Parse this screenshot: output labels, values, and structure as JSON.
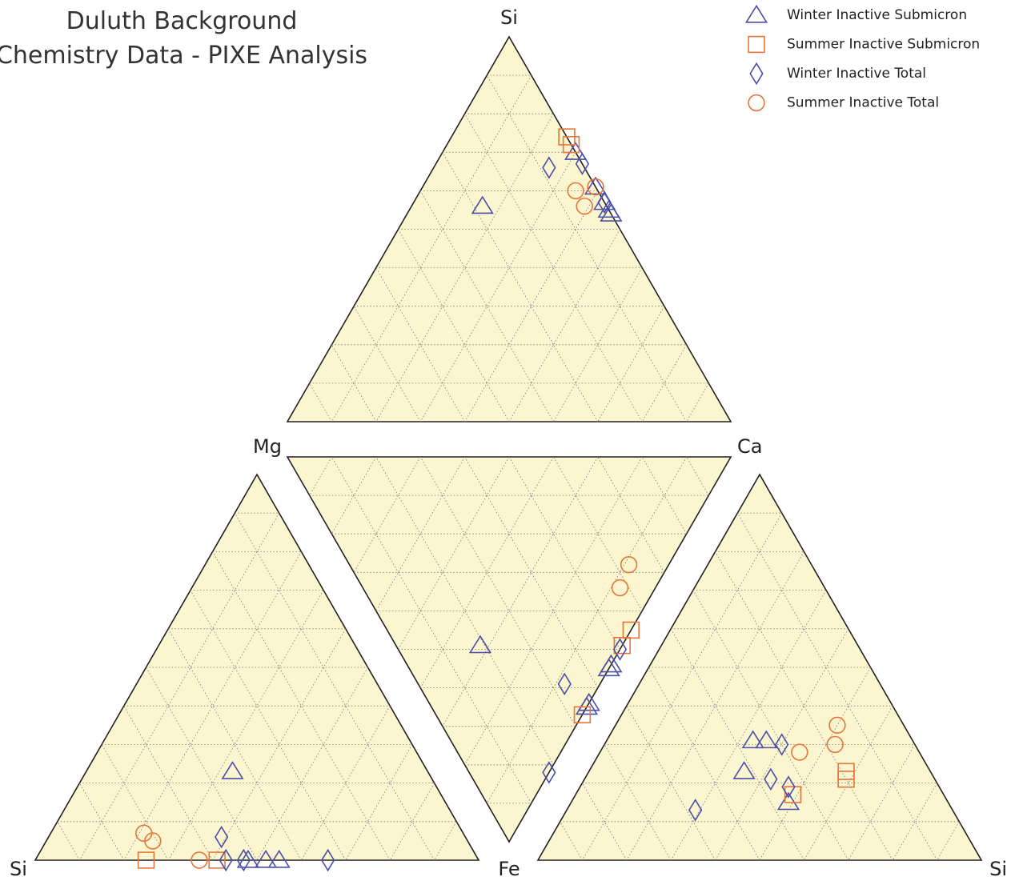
{
  "chart_data": {
    "type": "ternary",
    "title": [
      "Duluth Background",
      "Chemistry Data - PIXE Analysis"
    ],
    "labels": [
      "Si",
      "Mg",
      "Ca",
      "Si",
      "Fe",
      "Si"
    ],
    "grid_step": 10,
    "legend": "top-right",
    "series": [
      {
        "name": "Winter Inactive Submicron",
        "color": "#4b4fa8",
        "marker": "triangle",
        "values": [
          [
            [
              56,
              28,
              16
            ],
            [
              70,
              0,
              30
            ],
            [
              61,
              0,
              39
            ],
            [
              57,
              0,
              43
            ],
            [
              55,
              0,
              45
            ],
            [
              54,
              0,
              46
            ]
          ],
          [
            [
              32,
              19,
              49
            ],
            [
              0,
              45,
              55
            ],
            [
              0,
              46,
              54
            ],
            [
              0,
              36,
              64
            ],
            [
              0,
              35,
              65
            ]
          ],
          [
            [
              23,
              44,
              33
            ],
            [
              0,
              52,
              48
            ],
            [
              0,
              48,
              52
            ],
            [
              0,
              45,
              55
            ]
          ],
          [
            [
              31,
              36,
              33
            ],
            [
              31,
              33,
              36
            ],
            [
              23,
              42,
              35
            ],
            [
              15,
              36,
              49
            ]
          ]
        ]
      },
      {
        "name": "Summer Inactive Submicron",
        "color": "#e5763a",
        "marker": "square",
        "values": [
          [
            [
              74,
              0,
              26
            ],
            [
              72,
              0,
              28
            ]
          ],
          [
            [
              0,
              55,
              45
            ],
            [
              0,
              51,
              49
            ],
            [
              0,
              33,
              67
            ]
          ],
          [
            [
              0,
              75,
              25
            ],
            [
              0,
              59,
              41
            ]
          ],
          [
            [
              23,
              19,
              58
            ],
            [
              21,
              20,
              59
            ],
            [
              17,
              34,
              49
            ]
          ]
        ]
      },
      {
        "name": "Winter Inactive Total",
        "color": "#4b4fa8",
        "marker": "diamond",
        "values": [
          [
            [
              66,
              8,
              26
            ],
            [
              67,
              0,
              33
            ],
            [
              57,
              0,
              43
            ]
          ],
          [
            [
              8,
              33,
              59
            ],
            [
              0,
              18,
              82
            ],
            [
              0,
              50,
              50
            ]
          ],
          [
            [
              6,
              55,
              39
            ],
            [
              0,
              57,
              43
            ],
            [
              0,
              53,
              47
            ],
            [
              0,
              34,
              66
            ]
          ],
          [
            [
              30,
              30,
              40
            ],
            [
              21,
              37,
              42
            ],
            [
              19,
              34,
              47
            ],
            [
              13,
              58,
              29
            ]
          ]
        ]
      },
      {
        "name": "Summer Inactive Total",
        "color": "#e5763a",
        "marker": "circle",
        "values": [
          [
            [
              60,
              5,
              35
            ],
            [
              56,
              5,
              39
            ],
            [
              61,
              0,
              39
            ]
          ],
          [
            [
              9,
              63,
              28
            ],
            [
              8,
              58,
              34
            ]
          ],
          [
            [
              7,
              72,
              21
            ],
            [
              5,
              71,
              24
            ],
            [
              0,
              63,
              37
            ]
          ],
          [
            [
              35,
              15,
              50
            ],
            [
              30,
              18,
              52
            ],
            [
              28,
              27,
              45
            ]
          ]
        ]
      }
    ]
  }
}
